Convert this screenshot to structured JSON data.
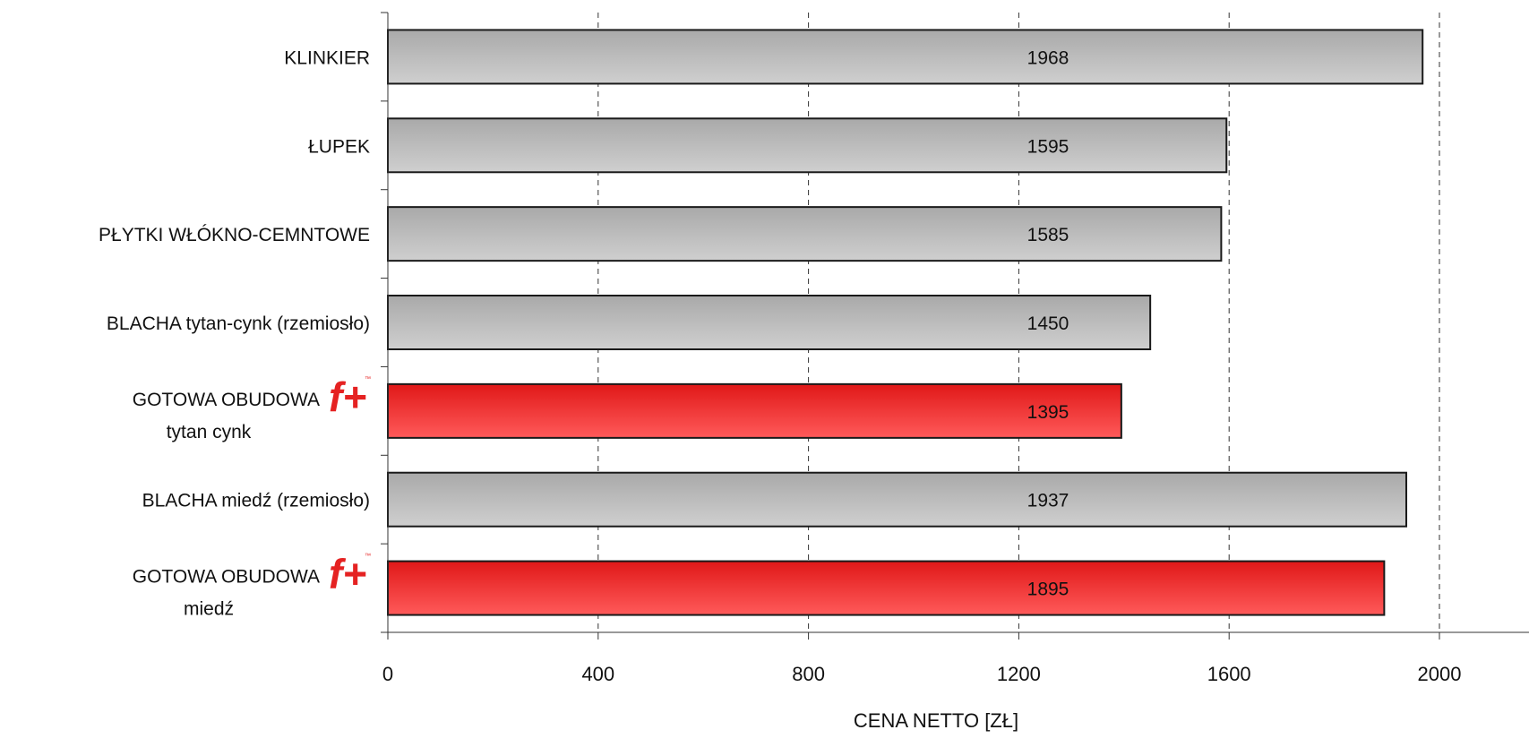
{
  "chart_data": {
    "type": "bar",
    "orientation": "horizontal",
    "categories": [
      {
        "label": "KLINKIER",
        "value": 1968,
        "highlight": false
      },
      {
        "label": "ŁUPEK",
        "value": 1595,
        "highlight": false
      },
      {
        "label": "PŁYTKI WŁÓKNO-CEMNTOWE",
        "value": 1585,
        "highlight": false
      },
      {
        "label": "BLACHA tytan-cynk (rzemiosło)",
        "value": 1450,
        "highlight": false
      },
      {
        "label": "GOTOWA OBUDOWA",
        "sublabel": "tytan cynk",
        "logo": "f+",
        "logo_tm": "™",
        "value": 1395,
        "highlight": true
      },
      {
        "label": "BLACHA miedź (rzemiosło)",
        "value": 1937,
        "highlight": false
      },
      {
        "label": "GOTOWA OBUDOWA",
        "sublabel": "miedź",
        "logo": "f+",
        "logo_tm": "™",
        "value": 1895,
        "highlight": true
      }
    ],
    "xlabel": "CENA NETTO [ZŁ]",
    "xlim": [
      0,
      2000
    ],
    "xticks": [
      "0",
      "400",
      "800",
      "1200",
      "1600",
      "2000"
    ],
    "grid": "vertical-dashed",
    "colors": {
      "default_bar_top": "#a9a9a9",
      "default_bar_bottom": "#cfcfcf",
      "highlight_bar_top": "#e01818",
      "highlight_bar_bottom": "#ff5a5a",
      "bar_border": "#1a1a1a",
      "logo": "#e52222"
    }
  }
}
